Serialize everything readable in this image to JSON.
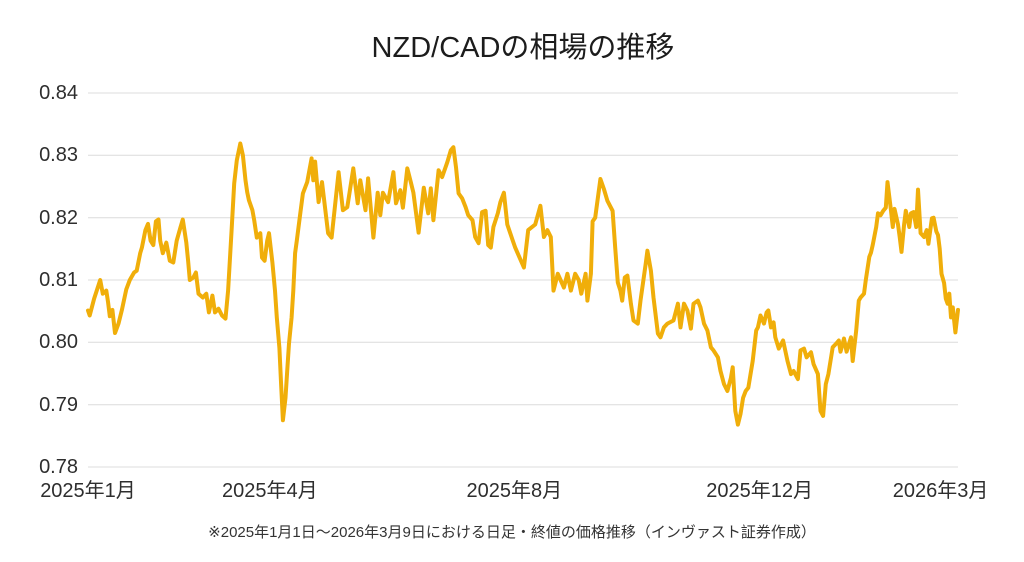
{
  "page": {
    "background": "#ffffff"
  },
  "chart_data": {
    "type": "line",
    "title": "NZD/CADの相場の推移",
    "caption": "※2025年1月1日〜2026年3月9日における日足・終値の価格推移（インヴァスト証券作成）",
    "x_range": [
      "2025-01-01",
      "2026-03-09"
    ],
    "grid": {
      "horizontal": true,
      "vertical": false,
      "color": "#dcdcdc"
    },
    "legend": "none",
    "y_axis": {
      "min": 0.78,
      "max": 0.84,
      "ticks": [
        {
          "label": "0.84",
          "value": 0.84
        },
        {
          "label": "0.83",
          "value": 0.83
        },
        {
          "label": "0.82",
          "value": 0.82
        },
        {
          "label": "0.81",
          "value": 0.81
        },
        {
          "label": "0.80",
          "value": 0.8
        },
        {
          "label": "0.79",
          "value": 0.79
        },
        {
          "label": "0.78",
          "value": 0.78
        }
      ]
    },
    "x_axis": {
      "ticks": [
        {
          "label": "2025年1月",
          "pos": 0.0
        },
        {
          "label": "2025年4月",
          "pos": 0.209
        },
        {
          "label": "2025年8月",
          "pos": 0.49
        },
        {
          "label": "2025年12月",
          "pos": 0.772
        },
        {
          "label": "2026年3月",
          "pos": 0.98
        }
      ]
    },
    "points_format": "[position 0-1 along time axis, NZD/CAD daily close]",
    "series": [
      {
        "name": "NZD/CAD 終値",
        "color": "#F0AE0A",
        "points": [
          [
            0.0,
            0.8051
          ],
          [
            0.002,
            0.8043
          ],
          [
            0.007,
            0.807
          ],
          [
            0.014,
            0.81
          ],
          [
            0.017,
            0.8078
          ],
          [
            0.021,
            0.8083
          ],
          [
            0.023,
            0.8065
          ],
          [
            0.025,
            0.8042
          ],
          [
            0.028,
            0.8052
          ],
          [
            0.031,
            0.8015
          ],
          [
            0.035,
            0.803
          ],
          [
            0.039,
            0.8052
          ],
          [
            0.044,
            0.8085
          ],
          [
            0.048,
            0.81
          ],
          [
            0.053,
            0.8112
          ],
          [
            0.056,
            0.8115
          ],
          [
            0.06,
            0.8143
          ],
          [
            0.062,
            0.8152
          ],
          [
            0.066,
            0.818
          ],
          [
            0.069,
            0.819
          ],
          [
            0.072,
            0.8163
          ],
          [
            0.075,
            0.8156
          ],
          [
            0.078,
            0.8194
          ],
          [
            0.081,
            0.8197
          ],
          [
            0.083,
            0.8163
          ],
          [
            0.086,
            0.8143
          ],
          [
            0.09,
            0.816
          ],
          [
            0.094,
            0.8131
          ],
          [
            0.098,
            0.8128
          ],
          [
            0.102,
            0.8163
          ],
          [
            0.106,
            0.8183
          ],
          [
            0.109,
            0.8197
          ],
          [
            0.113,
            0.816
          ],
          [
            0.115,
            0.8131
          ],
          [
            0.117,
            0.81
          ],
          [
            0.121,
            0.8104
          ],
          [
            0.124,
            0.8112
          ],
          [
            0.127,
            0.8078
          ],
          [
            0.132,
            0.8072
          ],
          [
            0.136,
            0.8078
          ],
          [
            0.139,
            0.8048
          ],
          [
            0.143,
            0.8075
          ],
          [
            0.146,
            0.8048
          ],
          [
            0.15,
            0.8054
          ],
          [
            0.154,
            0.8043
          ],
          [
            0.158,
            0.8038
          ],
          [
            0.161,
            0.8083
          ],
          [
            0.165,
            0.818
          ],
          [
            0.168,
            0.8255
          ],
          [
            0.171,
            0.8292
          ],
          [
            0.175,
            0.8319
          ],
          [
            0.178,
            0.83
          ],
          [
            0.181,
            0.826
          ],
          [
            0.183,
            0.8241
          ],
          [
            0.185,
            0.8228
          ],
          [
            0.189,
            0.8212
          ],
          [
            0.191,
            0.8196
          ],
          [
            0.194,
            0.8168
          ],
          [
            0.198,
            0.8175
          ],
          [
            0.2,
            0.8136
          ],
          [
            0.203,
            0.8131
          ],
          [
            0.206,
            0.8163
          ],
          [
            0.208,
            0.8175
          ],
          [
            0.212,
            0.8128
          ],
          [
            0.215,
            0.8083
          ],
          [
            0.217,
            0.804
          ],
          [
            0.22,
            0.7991
          ],
          [
            0.222,
            0.7933
          ],
          [
            0.224,
            0.7875
          ],
          [
            0.227,
            0.7911
          ],
          [
            0.229,
            0.7954
          ],
          [
            0.231,
            0.7998
          ],
          [
            0.234,
            0.804
          ],
          [
            0.236,
            0.8083
          ],
          [
            0.238,
            0.8143
          ],
          [
            0.24,
            0.8163
          ],
          [
            0.244,
            0.8207
          ],
          [
            0.247,
            0.8239
          ],
          [
            0.252,
            0.8257
          ],
          [
            0.257,
            0.8295
          ],
          [
            0.259,
            0.826
          ],
          [
            0.261,
            0.829
          ],
          [
            0.265,
            0.8225
          ],
          [
            0.269,
            0.8257
          ],
          [
            0.276,
            0.8175
          ],
          [
            0.28,
            0.8168
          ],
          [
            0.288,
            0.8273
          ],
          [
            0.293,
            0.8212
          ],
          [
            0.298,
            0.8217
          ],
          [
            0.305,
            0.8279
          ],
          [
            0.31,
            0.8223
          ],
          [
            0.313,
            0.826
          ],
          [
            0.319,
            0.8212
          ],
          [
            0.322,
            0.8263
          ],
          [
            0.328,
            0.8168
          ],
          [
            0.333,
            0.824
          ],
          [
            0.336,
            0.8204
          ],
          [
            0.339,
            0.824
          ],
          [
            0.345,
            0.8225
          ],
          [
            0.351,
            0.8273
          ],
          [
            0.354,
            0.8223
          ],
          [
            0.359,
            0.8244
          ],
          [
            0.362,
            0.8216
          ],
          [
            0.367,
            0.8279
          ],
          [
            0.371,
            0.8257
          ],
          [
            0.374,
            0.824
          ],
          [
            0.38,
            0.8176
          ],
          [
            0.386,
            0.8248
          ],
          [
            0.391,
            0.8207
          ],
          [
            0.394,
            0.8247
          ],
          [
            0.397,
            0.8196
          ],
          [
            0.403,
            0.8276
          ],
          [
            0.407,
            0.8265
          ],
          [
            0.413,
            0.8289
          ],
          [
            0.417,
            0.8308
          ],
          [
            0.42,
            0.8313
          ],
          [
            0.423,
            0.8281
          ],
          [
            0.426,
            0.8239
          ],
          [
            0.43,
            0.8231
          ],
          [
            0.434,
            0.8217
          ],
          [
            0.437,
            0.8204
          ],
          [
            0.442,
            0.8196
          ],
          [
            0.445,
            0.8169
          ],
          [
            0.449,
            0.8159
          ],
          [
            0.453,
            0.8209
          ],
          [
            0.457,
            0.8211
          ],
          [
            0.46,
            0.8156
          ],
          [
            0.463,
            0.8152
          ],
          [
            0.466,
            0.8185
          ],
          [
            0.471,
            0.8207
          ],
          [
            0.474,
            0.8225
          ],
          [
            0.478,
            0.824
          ],
          [
            0.482,
            0.8189
          ],
          [
            0.488,
            0.8164
          ],
          [
            0.491,
            0.8152
          ],
          [
            0.501,
            0.812
          ],
          [
            0.506,
            0.818
          ],
          [
            0.514,
            0.8189
          ],
          [
            0.52,
            0.8219
          ],
          [
            0.524,
            0.8169
          ],
          [
            0.528,
            0.818
          ],
          [
            0.532,
            0.8169
          ],
          [
            0.535,
            0.8083
          ],
          [
            0.54,
            0.811
          ],
          [
            0.547,
            0.8088
          ],
          [
            0.551,
            0.811
          ],
          [
            0.555,
            0.8083
          ],
          [
            0.56,
            0.811
          ],
          [
            0.564,
            0.81
          ],
          [
            0.567,
            0.8078
          ],
          [
            0.572,
            0.811
          ],
          [
            0.574,
            0.8067
          ],
          [
            0.578,
            0.811
          ],
          [
            0.58,
            0.8194
          ],
          [
            0.583,
            0.82
          ],
          [
            0.589,
            0.8262
          ],
          [
            0.593,
            0.8246
          ],
          [
            0.597,
            0.8227
          ],
          [
            0.603,
            0.8211
          ],
          [
            0.606,
            0.8152
          ],
          [
            0.609,
            0.8096
          ],
          [
            0.612,
            0.8083
          ],
          [
            0.614,
            0.8067
          ],
          [
            0.617,
            0.8104
          ],
          [
            0.62,
            0.8107
          ],
          [
            0.624,
            0.8062
          ],
          [
            0.627,
            0.8035
          ],
          [
            0.632,
            0.803
          ],
          [
            0.635,
            0.8067
          ],
          [
            0.641,
            0.8126
          ],
          [
            0.643,
            0.8147
          ],
          [
            0.647,
            0.8115
          ],
          [
            0.65,
            0.8072
          ],
          [
            0.655,
            0.8014
          ],
          [
            0.658,
            0.8008
          ],
          [
            0.662,
            0.8024
          ],
          [
            0.666,
            0.803
          ],
          [
            0.673,
            0.8035
          ],
          [
            0.678,
            0.8062
          ],
          [
            0.681,
            0.8024
          ],
          [
            0.685,
            0.8062
          ],
          [
            0.689,
            0.8051
          ],
          [
            0.693,
            0.8022
          ],
          [
            0.696,
            0.8062
          ],
          [
            0.701,
            0.8067
          ],
          [
            0.704,
            0.8056
          ],
          [
            0.708,
            0.803
          ],
          [
            0.712,
            0.8019
          ],
          [
            0.716,
            0.7992
          ],
          [
            0.719,
            0.7987
          ],
          [
            0.724,
            0.7976
          ],
          [
            0.727,
            0.7954
          ],
          [
            0.731,
            0.7933
          ],
          [
            0.735,
            0.7922
          ],
          [
            0.739,
            0.7943
          ],
          [
            0.741,
            0.796
          ],
          [
            0.744,
            0.789
          ],
          [
            0.747,
            0.7868
          ],
          [
            0.75,
            0.7885
          ],
          [
            0.753,
            0.7911
          ],
          [
            0.756,
            0.7922
          ],
          [
            0.759,
            0.7927
          ],
          [
            0.764,
            0.797
          ],
          [
            0.768,
            0.8019
          ],
          [
            0.77,
            0.8024
          ],
          [
            0.773,
            0.8043
          ],
          [
            0.777,
            0.803
          ],
          [
            0.78,
            0.8048
          ],
          [
            0.782,
            0.8051
          ],
          [
            0.785,
            0.8024
          ],
          [
            0.788,
            0.8032
          ],
          [
            0.79,
            0.8008
          ],
          [
            0.794,
            0.799
          ],
          [
            0.799,
            0.8003
          ],
          [
            0.804,
            0.797
          ],
          [
            0.808,
            0.7949
          ],
          [
            0.811,
            0.7954
          ],
          [
            0.816,
            0.7941
          ],
          [
            0.819,
            0.7987
          ],
          [
            0.823,
            0.799
          ],
          [
            0.826,
            0.7976
          ],
          [
            0.831,
            0.7984
          ],
          [
            0.834,
            0.7965
          ],
          [
            0.839,
            0.7949
          ],
          [
            0.842,
            0.789
          ],
          [
            0.845,
            0.7882
          ],
          [
            0.848,
            0.7933
          ],
          [
            0.851,
            0.7949
          ],
          [
            0.856,
            0.7992
          ],
          [
            0.86,
            0.7998
          ],
          [
            0.863,
            0.8003
          ],
          [
            0.865,
            0.7985
          ],
          [
            0.869,
            0.8006
          ],
          [
            0.872,
            0.7985
          ],
          [
            0.877,
            0.8008
          ],
          [
            0.879,
            0.797
          ],
          [
            0.883,
            0.8019
          ],
          [
            0.886,
            0.8067
          ],
          [
            0.888,
            0.8072
          ],
          [
            0.892,
            0.8078
          ],
          [
            0.894,
            0.81
          ],
          [
            0.898,
            0.8137
          ],
          [
            0.9,
            0.8144
          ],
          [
            0.902,
            0.8156
          ],
          [
            0.906,
            0.8185
          ],
          [
            0.908,
            0.8207
          ],
          [
            0.911,
            0.8204
          ],
          [
            0.914,
            0.8211
          ],
          [
            0.917,
            0.8216
          ],
          [
            0.919,
            0.8257
          ],
          [
            0.923,
            0.8211
          ],
          [
            0.925,
            0.8185
          ],
          [
            0.927,
            0.8214
          ],
          [
            0.931,
            0.8189
          ],
          [
            0.933,
            0.8169
          ],
          [
            0.935,
            0.8145
          ],
          [
            0.938,
            0.8189
          ],
          [
            0.94,
            0.8211
          ],
          [
            0.944,
            0.8185
          ],
          [
            0.946,
            0.8207
          ],
          [
            0.949,
            0.8209
          ],
          [
            0.952,
            0.8185
          ],
          [
            0.954,
            0.8245
          ],
          [
            0.957,
            0.8175
          ],
          [
            0.961,
            0.8169
          ],
          [
            0.964,
            0.818
          ],
          [
            0.966,
            0.8158
          ],
          [
            0.97,
            0.8199
          ],
          [
            0.972,
            0.82
          ],
          [
            0.975,
            0.8178
          ],
          [
            0.977,
            0.8172
          ],
          [
            0.979,
            0.815
          ],
          [
            0.981,
            0.811
          ],
          [
            0.984,
            0.8095
          ],
          [
            0.986,
            0.807
          ],
          [
            0.988,
            0.8062
          ],
          [
            0.99,
            0.8078
          ],
          [
            0.992,
            0.804
          ],
          [
            0.994,
            0.8056
          ],
          [
            0.997,
            0.8016
          ],
          [
            1.0,
            0.8052
          ]
        ]
      }
    ]
  }
}
